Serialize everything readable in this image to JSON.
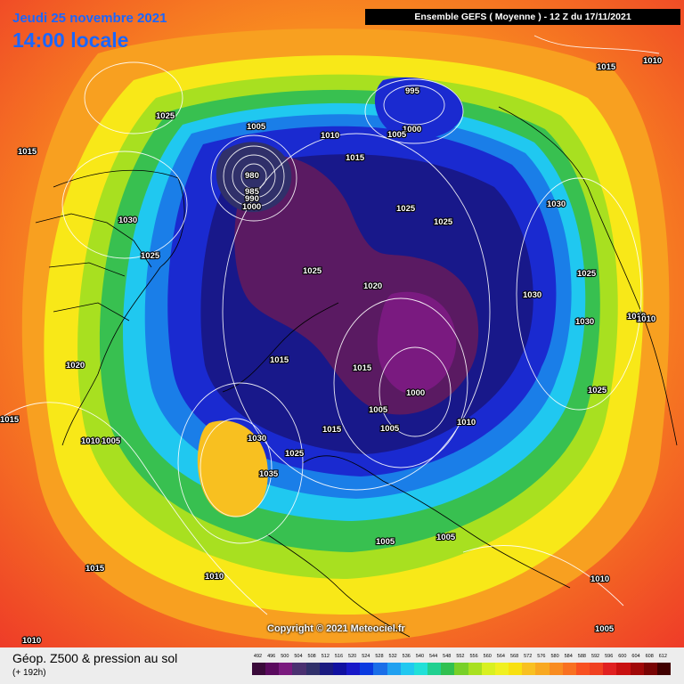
{
  "header": {
    "date": "Jeudi 25 novembre 2021",
    "time": "14:00 locale",
    "model": "Ensemble GEFS  ( Moyenne )  -  12 Z du 17/11/2021"
  },
  "copyright": "Copyright © 2021 Meteociel.fr",
  "legend": {
    "title": "Géop. Z500 & pression au sol",
    "subtitle": "(+ 192h)",
    "ticks": [
      "492",
      "496",
      "500",
      "504",
      "508",
      "512",
      "516",
      "520",
      "524",
      "528",
      "532",
      "536",
      "540",
      "544",
      "548",
      "552",
      "556",
      "560",
      "564",
      "568",
      "572",
      "576",
      "580",
      "584",
      "588",
      "592",
      "596",
      "600",
      "604",
      "608",
      "612"
    ],
    "colors": [
      "#3a0a3a",
      "#5a0a5e",
      "#7a1a7e",
      "#4a3070",
      "#30306a",
      "#1a1a80",
      "#1010a0",
      "#1818c8",
      "#0a3ae0",
      "#1a6ee8",
      "#20a0f0",
      "#20c8f0",
      "#20e0d8",
      "#20d090",
      "#30c050",
      "#78d028",
      "#a8e020",
      "#d8f020",
      "#f0f020",
      "#f8e010",
      "#f8c020",
      "#f8a820",
      "#f88c20",
      "#f87020",
      "#f85020",
      "#f04020",
      "#e02020",
      "#c81010",
      "#a00808",
      "#780404",
      "#400000"
    ]
  },
  "pressure_labels": [
    "1015",
    "1010",
    "1025",
    "1015",
    "1005",
    "1010",
    "995",
    "1000",
    "1005",
    "1015",
    "980",
    "985",
    "990",
    "1000",
    "1030",
    "1025",
    "1025",
    "1025",
    "1030",
    "1025",
    "1025",
    "1030",
    "1020",
    "1030",
    "1010",
    "1010",
    "1020",
    "1015",
    "1015",
    "1000",
    "1010",
    "1025",
    "1005",
    "1015",
    "1005",
    "1030",
    "1015",
    "1010",
    "1005",
    "1030",
    "1035",
    "1025",
    "1005",
    "1015",
    "1010",
    "1010",
    "1010",
    "1005",
    "1005"
  ],
  "field_colors": {
    "outer": "#f24a2a",
    "core": "#4a1450"
  }
}
